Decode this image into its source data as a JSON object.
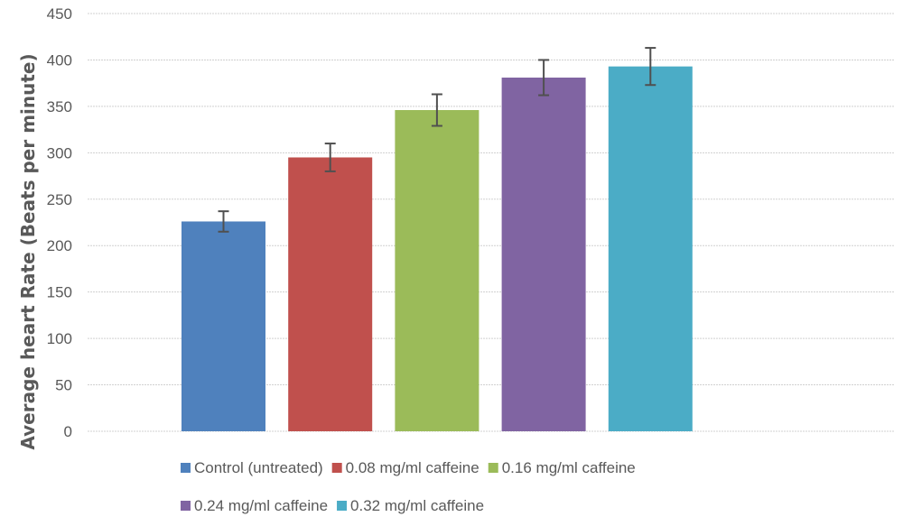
{
  "chart_data": {
    "type": "bar",
    "title": "",
    "xlabel": "",
    "ylabel": "Average heart Rate (Beats per minute)",
    "ylim": [
      0,
      450
    ],
    "yticks": [
      0,
      50,
      100,
      150,
      200,
      250,
      300,
      350,
      400,
      450
    ],
    "grid": true,
    "legend_position": "bottom",
    "series": [
      {
        "name": "Control (untreated)",
        "value": 226,
        "error": 11,
        "color": "#4F81BD"
      },
      {
        "name": "0.08 mg/ml caffeine",
        "value": 295,
        "error": 15,
        "color": "#C0504D"
      },
      {
        "name": "0.16 mg/ml caffeine",
        "value": 346,
        "error": 17,
        "color": "#9BBB59"
      },
      {
        "name": "0.24 mg/ml caffeine",
        "value": 381,
        "error": 19,
        "color": "#8064A2"
      },
      {
        "name": "0.32 mg/ml caffeine",
        "value": 393,
        "error": 20,
        "color": "#4BACC6"
      }
    ]
  }
}
